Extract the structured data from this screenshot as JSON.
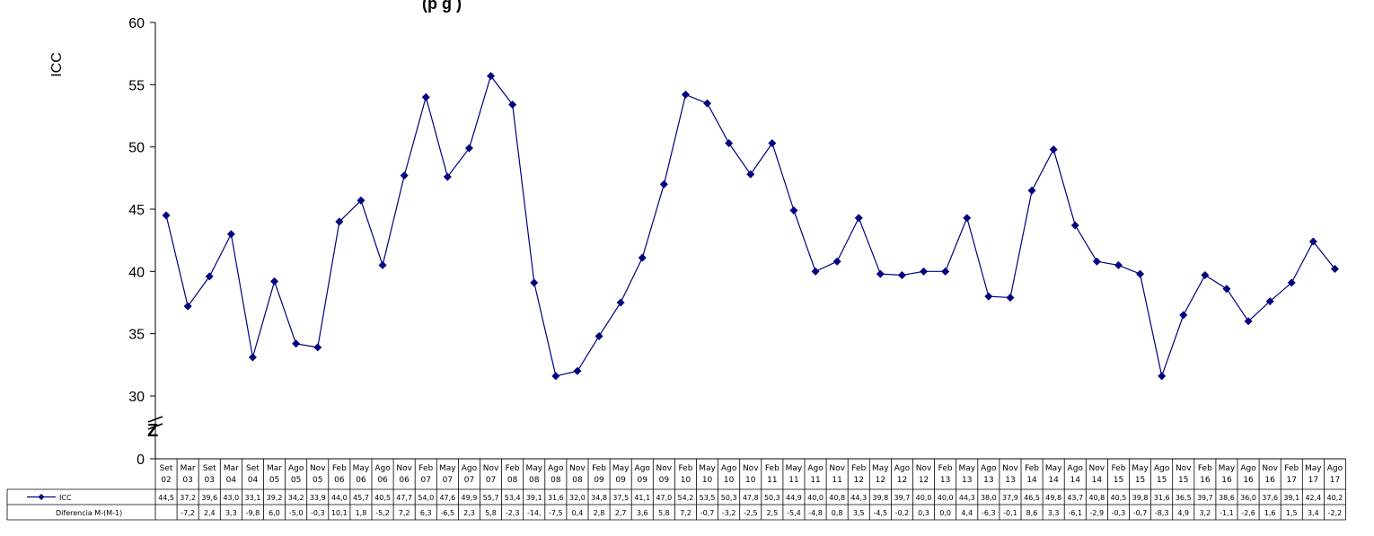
{
  "chart_data": {
    "type": "line",
    "title_fragment": "(p                        g                  )",
    "ylabel": "ICC",
    "ylim": [
      0,
      60
    ],
    "yticks": [
      0,
      30,
      35,
      40,
      45,
      50,
      55,
      60
    ],
    "axis_break_mark": "Z",
    "categories": [
      [
        "Set",
        "02"
      ],
      [
        "Mar",
        "03"
      ],
      [
        "Set",
        "03"
      ],
      [
        "Mar",
        "04"
      ],
      [
        "Set",
        "04"
      ],
      [
        "Mar",
        "05"
      ],
      [
        "Ago",
        "05"
      ],
      [
        "Nov",
        "05"
      ],
      [
        "Feb",
        "06"
      ],
      [
        "May",
        "06"
      ],
      [
        "Ago",
        "06"
      ],
      [
        "Nov",
        "06"
      ],
      [
        "Feb",
        "07"
      ],
      [
        "May",
        "07"
      ],
      [
        "Ago",
        "07"
      ],
      [
        "Nov",
        "07"
      ],
      [
        "Feb",
        "08"
      ],
      [
        "May",
        "08"
      ],
      [
        "Ago",
        "08"
      ],
      [
        "Nov",
        "08"
      ],
      [
        "Feb",
        "09"
      ],
      [
        "May",
        "09"
      ],
      [
        "Ago",
        "09"
      ],
      [
        "Nov",
        "09"
      ],
      [
        "Feb",
        "10"
      ],
      [
        "May",
        "10"
      ],
      [
        "Ago",
        "10"
      ],
      [
        "Nov",
        "10"
      ],
      [
        "Feb",
        "11"
      ],
      [
        "May",
        "11"
      ],
      [
        "Ago",
        "11"
      ],
      [
        "Nov",
        "11"
      ],
      [
        "Feb",
        "12"
      ],
      [
        "May",
        "12"
      ],
      [
        "Ago",
        "12"
      ],
      [
        "Nov",
        "12"
      ],
      [
        "Feb",
        "13"
      ],
      [
        "May",
        "13"
      ],
      [
        "Ago",
        "13"
      ],
      [
        "Nov",
        "13"
      ],
      [
        "Feb",
        "14"
      ],
      [
        "May",
        "14"
      ],
      [
        "Ago",
        "14"
      ],
      [
        "Nov",
        "14"
      ],
      [
        "Feb",
        "15"
      ],
      [
        "May",
        "15"
      ],
      [
        "Ago",
        "15"
      ],
      [
        "Nov",
        "15"
      ],
      [
        "Feb",
        "16"
      ],
      [
        "May",
        "16"
      ],
      [
        "Ago",
        "16"
      ],
      [
        "Nov",
        "16"
      ],
      [
        "Feb",
        "17"
      ],
      [
        "May",
        "17"
      ],
      [
        "Ago",
        "17"
      ]
    ],
    "series": [
      {
        "name": "ICC",
        "color": "#000080",
        "values": [
          44.5,
          37.2,
          39.6,
          43.0,
          33.1,
          39.2,
          34.2,
          33.9,
          44.0,
          45.7,
          40.5,
          47.7,
          54.0,
          47.6,
          49.9,
          55.7,
          53.4,
          39.1,
          31.6,
          32.0,
          34.8,
          37.5,
          41.1,
          47.0,
          54.2,
          53.5,
          50.3,
          47.8,
          50.3,
          44.9,
          40.0,
          40.8,
          44.3,
          39.8,
          39.7,
          40.0,
          40.0,
          44.3,
          38.0,
          37.9,
          46.5,
          49.8,
          43.7,
          40.8,
          40.5,
          39.8,
          31.6,
          36.5,
          39.7,
          38.6,
          36.0,
          37.6,
          39.1,
          42.4,
          40.2
        ],
        "labels": [
          "44,5",
          "37,2",
          "39,6",
          "43,0",
          "33,1",
          "39,2",
          "34,2",
          "33,9",
          "44,0",
          "45,7",
          "40,5",
          "47,7",
          "54,0",
          "47,6",
          "49,9",
          "55,7",
          "53,4",
          "39,1",
          "31,6",
          "32,0",
          "34,8",
          "37,5",
          "41,1",
          "47,0",
          "54,2",
          "53,5",
          "50,3",
          "47,8",
          "50,3",
          "44,9",
          "40,0",
          "40,8",
          "44,3",
          "39,8",
          "39,7",
          "40,0",
          "40,0",
          "44,3",
          "38,0",
          "37,9",
          "46,5",
          "49,8",
          "43,7",
          "40,8",
          "40,5",
          "39,8",
          "31,6",
          "36,5",
          "39,7",
          "38,6",
          "36,0",
          "37,6",
          "39,1",
          "42,4",
          "40,2"
        ]
      },
      {
        "name": "Diferencia M-(M-1)",
        "labels": [
          "",
          "-7,2",
          "2,4",
          "3,3",
          "-9,8",
          "6,0",
          "-5,0",
          "-0,3",
          "10,1",
          "1,8",
          "-5,2",
          "7,2",
          "6,3",
          "-6,5",
          "2,3",
          "5,8",
          "-2,3",
          "-14,",
          "-7,5",
          "0,4",
          "2,8",
          "2,7",
          "3,6",
          "5,8",
          "7,2",
          "-0,7",
          "-3,2",
          "-2,5",
          "2,5",
          "-5,4",
          "-4,8",
          "0,8",
          "3,5",
          "-4,5",
          "-0,2",
          "0,3",
          "0,0",
          "4,4",
          "-6,3",
          "-0,1",
          "8,6",
          "3,3",
          "-6,1",
          "-2,9",
          "-0,3",
          "-0,7",
          "-8,3",
          "4,9",
          "3,2",
          "-1,1",
          "-2,6",
          "1,6",
          "1,5",
          "3,4",
          "-2,2"
        ]
      }
    ],
    "legend": "table-left"
  }
}
